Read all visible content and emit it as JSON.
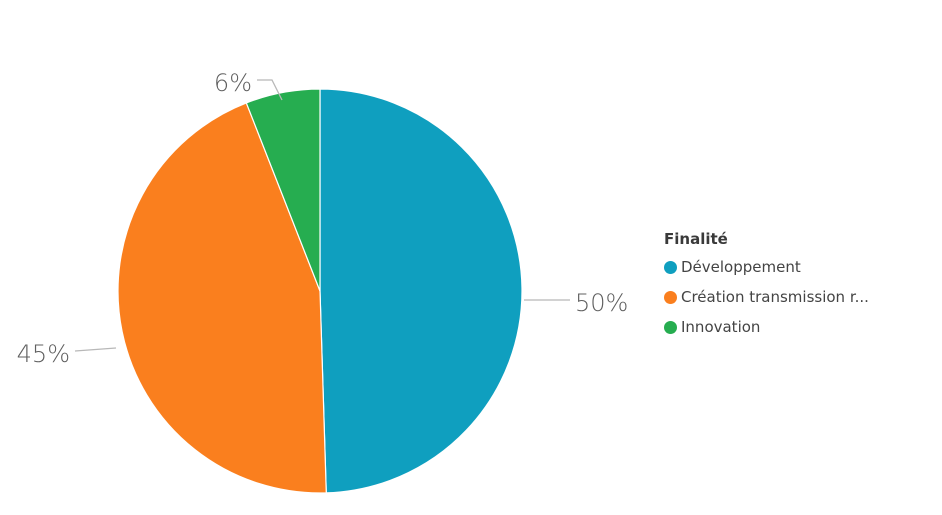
{
  "chart_data": {
    "type": "pie",
    "title": "",
    "legend_title": "Finalité",
    "legend_position": "right",
    "slices": [
      {
        "label": "Développement",
        "legend_label": "Développement",
        "value": 50,
        "display": "50%",
        "color": "#0f9fbf"
      },
      {
        "label": "Création transmission r...",
        "legend_label": "Création transmission r...",
        "value": 45,
        "display": "45%",
        "color": "#fa7f1e"
      },
      {
        "label": "Innovation",
        "legend_label": "Innovation",
        "value": 6,
        "display": "6%",
        "color": "#26ad50"
      }
    ]
  }
}
